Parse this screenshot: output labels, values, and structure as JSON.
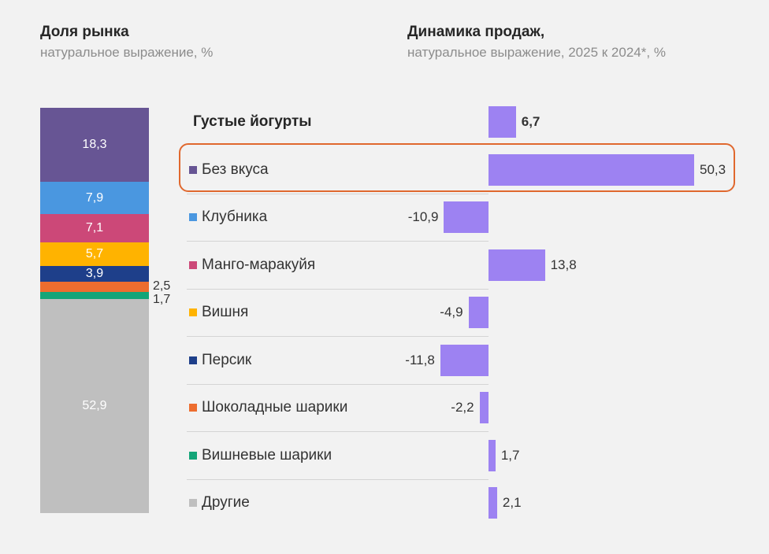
{
  "left_panel": {
    "title": "Доля рынка",
    "subtitle": "натуральное выражение, %"
  },
  "right_panel": {
    "title": "Динамика продаж,",
    "subtitle": "натуральное выражение, 2025 к 2024*, %"
  },
  "chart_data": [
    {
      "type": "bar",
      "orientation": "vertical-stacked",
      "title": "Доля рынка",
      "subtitle": "натуральное выражение, %",
      "ylim": [
        0,
        100
      ],
      "series": [
        {
          "name": "Без вкуса",
          "value": 18.3,
          "label": "18,3",
          "color": "#675594"
        },
        {
          "name": "Клубника",
          "value": 7.9,
          "label": "7,9",
          "color": "#4a97e0"
        },
        {
          "name": "Манго-маракуйя",
          "value": 7.1,
          "label": "7,1",
          "color": "#cc4878"
        },
        {
          "name": "Вишня",
          "value": 5.7,
          "label": "5,7",
          "color": "#ffb300"
        },
        {
          "name": "Персик",
          "value": 3.9,
          "label": "3,9",
          "color": "#1e3f8a"
        },
        {
          "name": "Шоколадные шарики",
          "value": 2.5,
          "label": "2,5",
          "color": "#ed6d2f"
        },
        {
          "name": "Вишневые шарики",
          "value": 1.7,
          "label": "1,7",
          "color": "#13a578"
        },
        {
          "name": "Другие",
          "value": 52.9,
          "label": "52,9",
          "color": "#bfbfbf"
        }
      ]
    },
    {
      "type": "bar",
      "orientation": "horizontal",
      "title": "Динамика продаж,",
      "subtitle": "натуральное выражение, 2025 к 2024*, %",
      "bar_color": "#9d82f2",
      "highlight_color": "#e0682e",
      "highlighted": "Без вкуса",
      "categories": [
        {
          "name": "Густые йогурты",
          "value": 6.7,
          "label": "6,7",
          "bold": true
        },
        {
          "name": "Без вкуса",
          "value": 50.3,
          "label": "50,3",
          "swatch": "#675594"
        },
        {
          "name": "Клубника",
          "value": -10.9,
          "label": "-10,9",
          "swatch": "#4a97e0"
        },
        {
          "name": "Манго-маракуйя",
          "value": 13.8,
          "label": "13,8",
          "swatch": "#cc4878"
        },
        {
          "name": "Вишня",
          "value": -4.9,
          "label": "-4,9",
          "swatch": "#ffb300"
        },
        {
          "name": "Персик",
          "value": -11.8,
          "label": "-11,8",
          "swatch": "#1e3f8a"
        },
        {
          "name": "Шоколадные шарики",
          "value": -2.2,
          "label": "-2,2",
          "swatch": "#ed6d2f"
        },
        {
          "name": "Вишневые шарики",
          "value": 1.7,
          "label": "1,7",
          "swatch": "#13a578"
        },
        {
          "name": "Другие",
          "value": 2.1,
          "label": "2,1",
          "swatch": "#bfbfbf"
        }
      ]
    }
  ]
}
